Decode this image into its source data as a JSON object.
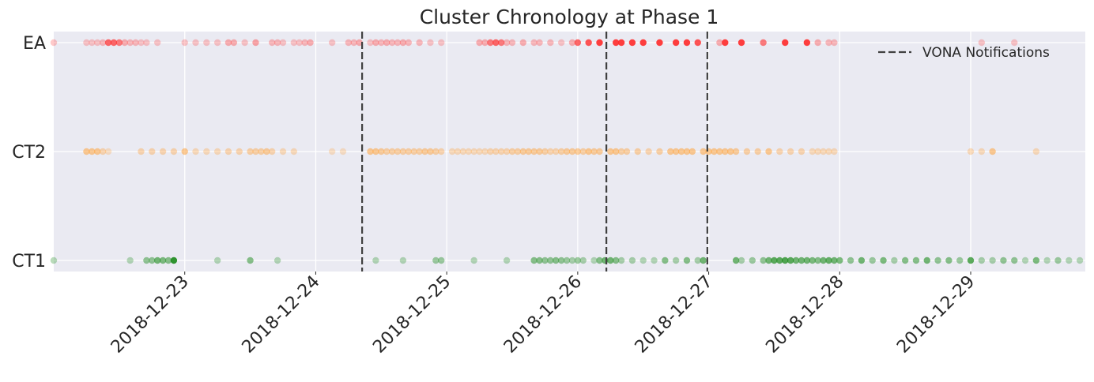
{
  "chart_data": {
    "type": "scatter",
    "title": "Cluster Chronology at Phase 1",
    "xlabel": "",
    "ylabel": "",
    "x_axis": "date",
    "xlim": [
      "2018-12-22T00:00",
      "2018-12-29T21:00"
    ],
    "x_ticks": [
      "2018-12-23",
      "2018-12-24",
      "2018-12-25",
      "2018-12-26",
      "2018-12-27",
      "2018-12-28",
      "2018-12-29"
    ],
    "categories": [
      "CT1",
      "CT2",
      "EA"
    ],
    "grid": true,
    "legend": {
      "placement": "top-right",
      "entries": [
        "VONA Notifications"
      ]
    },
    "vlines": {
      "name": "VONA Notifications",
      "color": "#404040",
      "style": "dashed",
      "x": [
        "2018-12-24T08:30",
        "2018-12-26T05:15",
        "2018-12-26T23:45"
      ]
    },
    "series": [
      {
        "category": "EA",
        "color": "#ff2a2a",
        "x": [
          "2018-12-22T00:00",
          "2018-12-22T06:00",
          "2018-12-22T07:00",
          "2018-12-22T08:00",
          "2018-12-22T09:00",
          "2018-12-22T10:00",
          "2018-12-22T11:00",
          "2018-12-22T12:00",
          "2018-12-22T13:00",
          "2018-12-22T14:00",
          "2018-12-22T15:00",
          "2018-12-22T16:00",
          "2018-12-22T17:00",
          "2018-12-22T19:00",
          "2018-12-23T00:00",
          "2018-12-23T02:00",
          "2018-12-23T04:00",
          "2018-12-23T06:00",
          "2018-12-23T08:00",
          "2018-12-23T09:00",
          "2018-12-23T11:00",
          "2018-12-23T13:00",
          "2018-12-23T16:00",
          "2018-12-23T17:00",
          "2018-12-23T18:00",
          "2018-12-23T20:00",
          "2018-12-23T21:00",
          "2018-12-23T22:00",
          "2018-12-23T23:00",
          "2018-12-24T03:00",
          "2018-12-24T06:00",
          "2018-12-24T07:00",
          "2018-12-24T08:00",
          "2018-12-24T10:00",
          "2018-12-24T11:00",
          "2018-12-24T12:00",
          "2018-12-24T13:00",
          "2018-12-24T14:00",
          "2018-12-24T15:00",
          "2018-12-24T16:00",
          "2018-12-24T17:00",
          "2018-12-24T19:00",
          "2018-12-24T21:00",
          "2018-12-24T23:00",
          "2018-12-25T06:00",
          "2018-12-25T07:00",
          "2018-12-25T08:00",
          "2018-12-25T09:00",
          "2018-12-25T10:00",
          "2018-12-25T11:00",
          "2018-12-25T12:00",
          "2018-12-25T14:00",
          "2018-12-25T16:00",
          "2018-12-25T17:00",
          "2018-12-25T19:00",
          "2018-12-25T21:00",
          "2018-12-25T23:00",
          "2018-12-26T00:00",
          "2018-12-26T02:00",
          "2018-12-26T04:00",
          "2018-12-26T07:00",
          "2018-12-26T08:00",
          "2018-12-26T10:00",
          "2018-12-26T12:00",
          "2018-12-26T15:00",
          "2018-12-26T18:00",
          "2018-12-26T20:00",
          "2018-12-26T22:00",
          "2018-12-27T02:00",
          "2018-12-27T03:00",
          "2018-12-27T06:00",
          "2018-12-27T10:00",
          "2018-12-27T14:00",
          "2018-12-27T18:00",
          "2018-12-27T20:00",
          "2018-12-27T22:00",
          "2018-12-27T23:00",
          "2018-12-29T02:00",
          "2018-12-29T08:00"
        ],
        "alpha": [
          0.25,
          0.25,
          0.25,
          0.25,
          0.3,
          0.7,
          0.7,
          0.6,
          0.35,
          0.3,
          0.3,
          0.25,
          0.25,
          0.25,
          0.25,
          0.25,
          0.25,
          0.25,
          0.35,
          0.35,
          0.25,
          0.4,
          0.3,
          0.3,
          0.25,
          0.25,
          0.25,
          0.3,
          0.35,
          0.25,
          0.3,
          0.3,
          0.35,
          0.25,
          0.35,
          0.3,
          0.35,
          0.3,
          0.3,
          0.35,
          0.3,
          0.3,
          0.25,
          0.25,
          0.35,
          0.35,
          0.6,
          0.7,
          0.6,
          0.3,
          0.3,
          0.35,
          0.3,
          0.3,
          0.3,
          0.25,
          0.35,
          0.7,
          0.8,
          0.9,
          0.9,
          0.9,
          0.9,
          0.9,
          0.9,
          0.9,
          0.9,
          0.8,
          0.35,
          0.9,
          0.9,
          0.6,
          0.9,
          0.9,
          0.35,
          0.3,
          0.3,
          0.25,
          0.25
        ]
      },
      {
        "category": "CT2",
        "color": "#ff9b2a",
        "x": [
          "2018-12-22T06:00",
          "2018-12-22T07:00",
          "2018-12-22T08:00",
          "2018-12-22T09:00",
          "2018-12-22T10:00",
          "2018-12-22T16:00",
          "2018-12-22T18:00",
          "2018-12-22T20:00",
          "2018-12-22T22:00",
          "2018-12-23T00:00",
          "2018-12-23T02:00",
          "2018-12-23T04:00",
          "2018-12-23T06:00",
          "2018-12-23T08:00",
          "2018-12-23T10:00",
          "2018-12-23T12:00",
          "2018-12-23T13:00",
          "2018-12-23T14:00",
          "2018-12-23T15:00",
          "2018-12-23T16:00",
          "2018-12-23T18:00",
          "2018-12-23T20:00",
          "2018-12-24T03:00",
          "2018-12-24T05:00",
          "2018-12-24T10:00",
          "2018-12-24T11:00",
          "2018-12-24T12:00",
          "2018-12-24T13:00",
          "2018-12-24T14:00",
          "2018-12-24T15:00",
          "2018-12-24T16:00",
          "2018-12-24T17:00",
          "2018-12-24T18:00",
          "2018-12-24T19:00",
          "2018-12-24T20:00",
          "2018-12-24T21:00",
          "2018-12-24T22:00",
          "2018-12-24T23:00",
          "2018-12-25T01:00",
          "2018-12-25T02:00",
          "2018-12-25T03:00",
          "2018-12-25T04:00",
          "2018-12-25T05:00",
          "2018-12-25T06:00",
          "2018-12-25T07:00",
          "2018-12-25T08:00",
          "2018-12-25T09:00",
          "2018-12-25T10:00",
          "2018-12-25T11:00",
          "2018-12-25T12:00",
          "2018-12-25T13:00",
          "2018-12-25T14:00",
          "2018-12-25T15:00",
          "2018-12-25T16:00",
          "2018-12-25T17:00",
          "2018-12-25T18:00",
          "2018-12-25T19:00",
          "2018-12-25T20:00",
          "2018-12-25T21:00",
          "2018-12-25T22:00",
          "2018-12-25T23:00",
          "2018-12-26T00:00",
          "2018-12-26T01:00",
          "2018-12-26T02:00",
          "2018-12-26T03:00",
          "2018-12-26T04:00",
          "2018-12-26T06:00",
          "2018-12-26T07:00",
          "2018-12-26T08:00",
          "2018-12-26T09:00",
          "2018-12-26T11:00",
          "2018-12-26T13:00",
          "2018-12-26T15:00",
          "2018-12-26T17:00",
          "2018-12-26T18:00",
          "2018-12-26T19:00",
          "2018-12-26T20:00",
          "2018-12-26T21:00",
          "2018-12-26T23:00",
          "2018-12-27T00:00",
          "2018-12-27T01:00",
          "2018-12-27T02:00",
          "2018-12-27T03:00",
          "2018-12-27T04:00",
          "2018-12-27T05:00",
          "2018-12-27T07:00",
          "2018-12-27T09:00",
          "2018-12-27T11:00",
          "2018-12-27T13:00",
          "2018-12-27T15:00",
          "2018-12-27T17:00",
          "2018-12-27T19:00",
          "2018-12-27T20:00",
          "2018-12-27T21:00",
          "2018-12-27T22:00",
          "2018-12-27T23:00",
          "2018-12-29T00:00",
          "2018-12-29T02:00",
          "2018-12-29T04:00",
          "2018-12-29T12:00"
        ],
        "alpha": [
          0.5,
          0.5,
          0.5,
          0.35,
          0.25,
          0.35,
          0.35,
          0.35,
          0.35,
          0.5,
          0.3,
          0.3,
          0.3,
          0.35,
          0.35,
          0.4,
          0.4,
          0.4,
          0.45,
          0.35,
          0.3,
          0.3,
          0.25,
          0.25,
          0.5,
          0.5,
          0.45,
          0.4,
          0.4,
          0.4,
          0.4,
          0.4,
          0.4,
          0.4,
          0.45,
          0.45,
          0.4,
          0.35,
          0.3,
          0.3,
          0.3,
          0.3,
          0.3,
          0.3,
          0.3,
          0.35,
          0.35,
          0.35,
          0.35,
          0.4,
          0.4,
          0.45,
          0.45,
          0.45,
          0.45,
          0.4,
          0.35,
          0.35,
          0.4,
          0.45,
          0.45,
          0.45,
          0.4,
          0.5,
          0.45,
          0.45,
          0.5,
          0.5,
          0.4,
          0.4,
          0.4,
          0.35,
          0.4,
          0.5,
          0.5,
          0.5,
          0.5,
          0.5,
          0.5,
          0.5,
          0.5,
          0.5,
          0.5,
          0.5,
          0.45,
          0.4,
          0.4,
          0.5,
          0.35,
          0.35,
          0.35,
          0.3,
          0.3,
          0.3,
          0.3,
          0.3,
          0.3,
          0.3,
          0.5,
          0.3
        ]
      },
      {
        "category": "CT1",
        "color": "#1a8a1a",
        "x": [
          "2018-12-22T00:00",
          "2018-12-22T14:00",
          "2018-12-22T17:00",
          "2018-12-22T18:00",
          "2018-12-22T19:00",
          "2018-12-22T20:00",
          "2018-12-22T21:00",
          "2018-12-22T22:00",
          "2018-12-23T06:00",
          "2018-12-23T12:00",
          "2018-12-23T17:00",
          "2018-12-24T11:00",
          "2018-12-24T16:00",
          "2018-12-24T22:00",
          "2018-12-24T23:00",
          "2018-12-25T05:00",
          "2018-12-25T11:00",
          "2018-12-25T16:00",
          "2018-12-25T17:00",
          "2018-12-25T18:00",
          "2018-12-25T19:00",
          "2018-12-25T20:00",
          "2018-12-25T21:00",
          "2018-12-25T22:00",
          "2018-12-25T23:00",
          "2018-12-26T00:00",
          "2018-12-26T01:00",
          "2018-12-26T03:00",
          "2018-12-26T04:00",
          "2018-12-26T05:00",
          "2018-12-26T06:00",
          "2018-12-26T07:00",
          "2018-12-26T08:00",
          "2018-12-26T10:00",
          "2018-12-26T12:00",
          "2018-12-26T14:00",
          "2018-12-26T16:00",
          "2018-12-26T18:00",
          "2018-12-26T20:00",
          "2018-12-26T22:00",
          "2018-12-26T23:00",
          "2018-12-27T05:00",
          "2018-12-27T06:00",
          "2018-12-27T08:00",
          "2018-12-27T10:00",
          "2018-12-27T11:00",
          "2018-12-27T12:00",
          "2018-12-27T13:00",
          "2018-12-27T14:00",
          "2018-12-27T15:00",
          "2018-12-27T16:00",
          "2018-12-27T17:00",
          "2018-12-27T18:00",
          "2018-12-27T19:00",
          "2018-12-27T20:00",
          "2018-12-27T21:00",
          "2018-12-27T22:00",
          "2018-12-27T23:00",
          "2018-12-28T00:00",
          "2018-12-28T02:00",
          "2018-12-28T04:00",
          "2018-12-28T06:00",
          "2018-12-28T08:00",
          "2018-12-28T10:00",
          "2018-12-28T12:00",
          "2018-12-28T14:00",
          "2018-12-28T16:00",
          "2018-12-28T18:00",
          "2018-12-28T20:00",
          "2018-12-28T22:00",
          "2018-12-29T00:00",
          "2018-12-29T02:00",
          "2018-12-29T04:00",
          "2018-12-29T06:00",
          "2018-12-29T08:00",
          "2018-12-29T10:00",
          "2018-12-29T12:00",
          "2018-12-29T14:00",
          "2018-12-29T16:00",
          "2018-12-29T18:00",
          "2018-12-29T20:00"
        ],
        "alpha": [
          0.3,
          0.3,
          0.45,
          0.45,
          0.6,
          0.55,
          0.5,
          0.9,
          0.3,
          0.5,
          0.3,
          0.3,
          0.3,
          0.4,
          0.4,
          0.3,
          0.3,
          0.5,
          0.5,
          0.45,
          0.45,
          0.5,
          0.45,
          0.4,
          0.35,
          0.4,
          0.35,
          0.3,
          0.5,
          0.6,
          0.6,
          0.5,
          0.35,
          0.35,
          0.3,
          0.3,
          0.5,
          0.35,
          0.5,
          0.35,
          0.6,
          0.6,
          0.35,
          0.4,
          0.45,
          0.6,
          0.7,
          0.7,
          0.75,
          0.7,
          0.6,
          0.6,
          0.6,
          0.55,
          0.5,
          0.6,
          0.65,
          0.6,
          0.55,
          0.45,
          0.6,
          0.4,
          0.55,
          0.35,
          0.5,
          0.5,
          0.6,
          0.45,
          0.5,
          0.4,
          0.7,
          0.35,
          0.35,
          0.45,
          0.45,
          0.3,
          0.55,
          0.3,
          0.4,
          0.3,
          0.3
        ]
      }
    ]
  }
}
